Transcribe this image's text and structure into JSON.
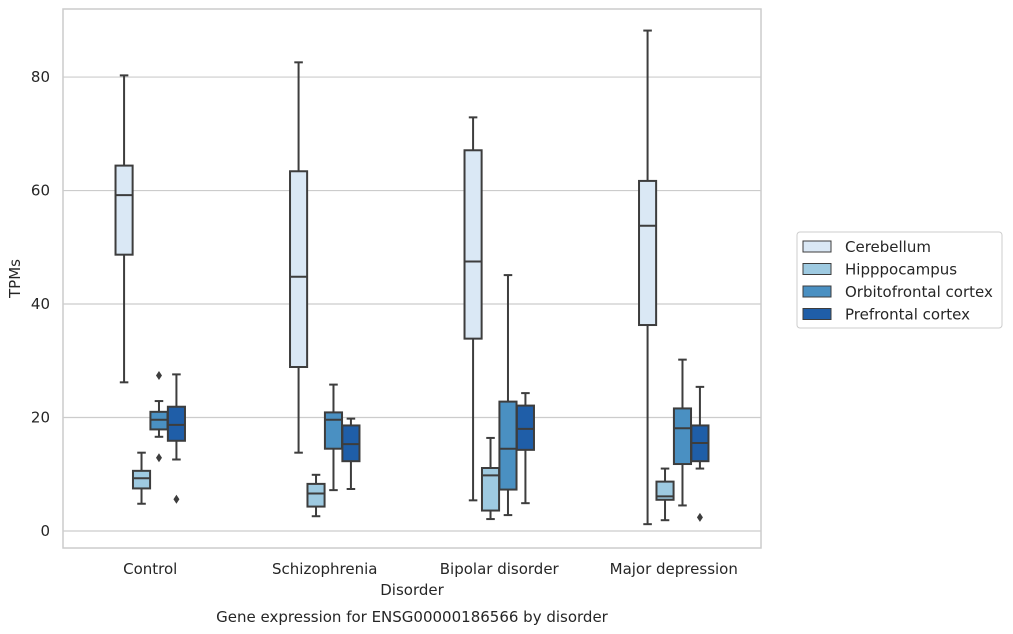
{
  "chart_data": {
    "type": "box",
    "caption": "Gene expression for ENSG00000186566 by disorder",
    "xlabel": "Disorder",
    "ylabel": "TPMs",
    "ylim": [
      -3,
      92
    ],
    "yticks": [
      0,
      20,
      40,
      60,
      80
    ],
    "grid": "horizontal",
    "legend_position": "right",
    "categories": [
      "Control",
      "Schizophrenia",
      "Bipolar disorder",
      "Major depression"
    ],
    "series": [
      {
        "name": "Cerebellum",
        "color": "#dae8f5",
        "boxes": [
          {
            "whislo": 26.2,
            "q1": 48.7,
            "med": 59.2,
            "q3": 64.4,
            "whishi": 80.3,
            "fliers": []
          },
          {
            "whislo": 13.8,
            "q1": 28.9,
            "med": 44.8,
            "q3": 63.4,
            "whishi": 82.6,
            "fliers": []
          },
          {
            "whislo": 5.4,
            "q1": 33.9,
            "med": 47.5,
            "q3": 67.1,
            "whishi": 72.9,
            "fliers": []
          },
          {
            "whislo": 1.2,
            "q1": 36.3,
            "med": 53.8,
            "q3": 61.7,
            "whishi": 88.2,
            "fliers": []
          }
        ]
      },
      {
        "name": "Hipppocampus",
        "color": "#9ecae1",
        "boxes": [
          {
            "whislo": 4.8,
            "q1": 7.5,
            "med": 9.3,
            "q3": 10.6,
            "whishi": 13.8,
            "fliers": []
          },
          {
            "whislo": 2.6,
            "q1": 4.3,
            "med": 6.6,
            "q3": 8.3,
            "whishi": 9.9,
            "fliers": []
          },
          {
            "whislo": 2.1,
            "q1": 3.6,
            "med": 9.8,
            "q3": 11.1,
            "whishi": 16.4,
            "fliers": []
          },
          {
            "whislo": 1.9,
            "q1": 5.5,
            "med": 6.1,
            "q3": 8.7,
            "whishi": 11.0,
            "fliers": []
          }
        ]
      },
      {
        "name": "Orbitofrontal cortex",
        "color": "#4a90c2",
        "boxes": [
          {
            "whislo": 16.6,
            "q1": 17.9,
            "med": 19.6,
            "q3": 21.0,
            "whishi": 22.9,
            "fliers": [
              27.4,
              12.9
            ]
          },
          {
            "whislo": 7.2,
            "q1": 14.5,
            "med": 19.6,
            "q3": 20.9,
            "whishi": 25.8,
            "fliers": []
          },
          {
            "whislo": 2.8,
            "q1": 7.3,
            "med": 14.5,
            "q3": 22.8,
            "whishi": 45.1,
            "fliers": []
          },
          {
            "whislo": 4.5,
            "q1": 11.8,
            "med": 18.1,
            "q3": 21.6,
            "whishi": 30.2,
            "fliers": []
          }
        ]
      },
      {
        "name": "Prefrontal cortex",
        "color": "#1f5ea8",
        "boxes": [
          {
            "whislo": 12.6,
            "q1": 15.9,
            "med": 18.7,
            "q3": 21.9,
            "whishi": 27.6,
            "fliers": [
              5.6
            ]
          },
          {
            "whislo": 7.4,
            "q1": 12.3,
            "med": 15.3,
            "q3": 18.6,
            "whishi": 19.8,
            "fliers": []
          },
          {
            "whislo": 4.9,
            "q1": 14.3,
            "med": 18.0,
            "q3": 22.1,
            "whishi": 24.3,
            "fliers": []
          },
          {
            "whislo": 11.0,
            "q1": 12.3,
            "med": 15.5,
            "q3": 18.6,
            "whishi": 25.4,
            "fliers": [
              2.4
            ]
          }
        ]
      }
    ]
  }
}
